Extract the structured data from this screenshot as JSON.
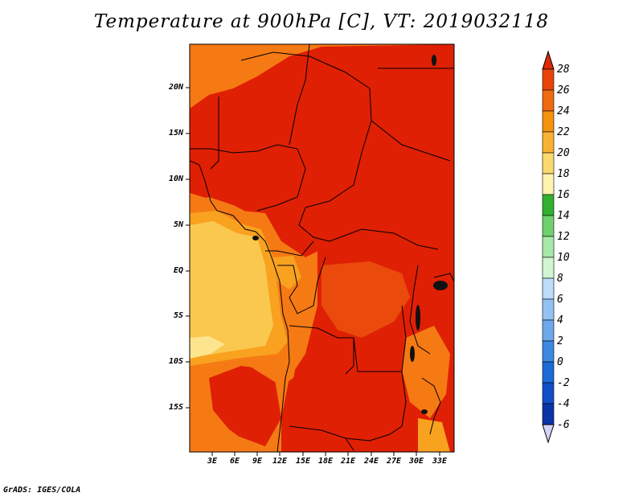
{
  "title": "Temperature at 900hPa [C], VT: 2019032118",
  "footer": "GrADS: IGES/COLA",
  "y_axis_labels": [
    "20N",
    "15N",
    "10N",
    "5N",
    "EQ",
    "5S",
    "10S",
    "15S"
  ],
  "x_axis_labels": [
    "3E",
    "6E",
    "9E",
    "12E",
    "15E",
    "18E",
    "21E",
    "24E",
    "27E",
    "30E",
    "33E"
  ],
  "colorbar": {
    "labels": [
      "28",
      "26",
      "24",
      "22",
      "20",
      "18",
      "16",
      "14",
      "12",
      "10",
      "8",
      "6",
      "4",
      "2",
      "0",
      "-2",
      "-4",
      "-6"
    ],
    "colors": [
      "#e02d08",
      "#e8440a",
      "#ef6a10",
      "#f5920f",
      "#f8b233",
      "#fad96f",
      "#fff3b0",
      "#30b030",
      "#6fd06f",
      "#a8e8a8",
      "#d2f5d2",
      "#bcdcf8",
      "#93c2f2",
      "#6ca8ea",
      "#3c88e2",
      "#1c6ad8",
      "#124ec8",
      "#0a34a8",
      "#061478"
    ],
    "top_arrow_color": "#de2806",
    "bottom_arrow_color": "#d4d4f6"
  },
  "palette": {
    "red": "#df2004",
    "red_orange": "#ea4b0c",
    "orange": "#f57a14",
    "light_orange": "#f8a220",
    "yellow_orange": "#fbc84f",
    "pale_yellow": "#fde58e"
  }
}
